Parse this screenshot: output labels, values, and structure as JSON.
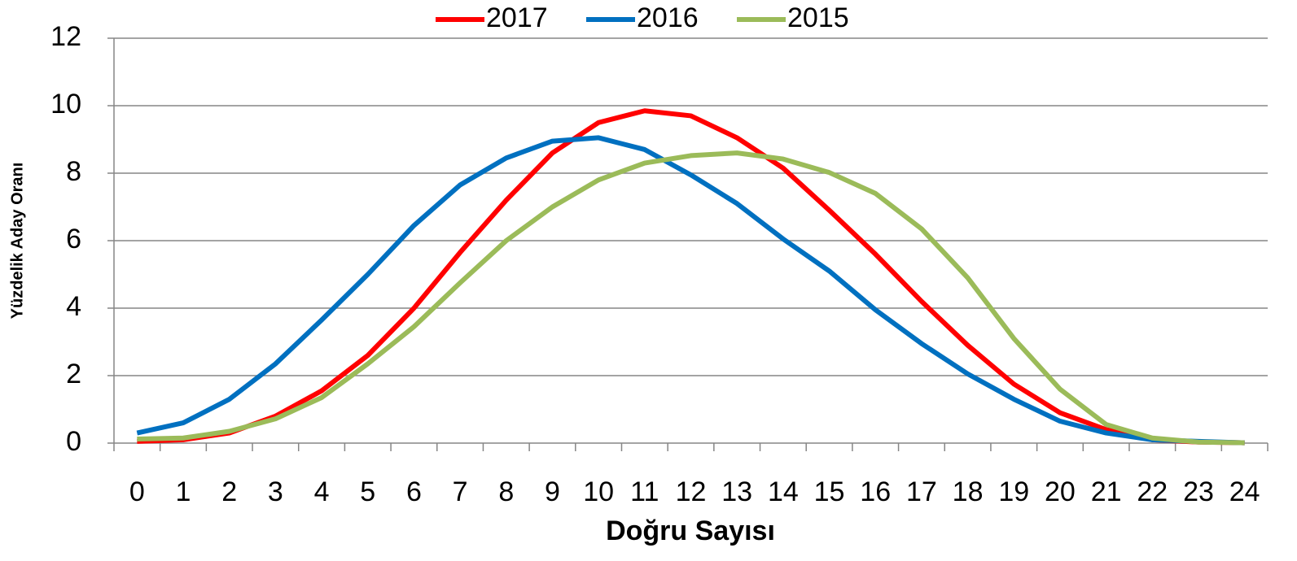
{
  "chart_data": {
    "type": "line",
    "x_label": "Doğru Sayısı",
    "y_label": "Yüzdelik Aday Oranı",
    "categories": [
      "0",
      "1",
      "2",
      "3",
      "4",
      "5",
      "6",
      "7",
      "8",
      "9",
      "10",
      "11",
      "12",
      "13",
      "14",
      "15",
      "16",
      "17",
      "18",
      "19",
      "20",
      "21",
      "22",
      "23",
      "24"
    ],
    "series": [
      {
        "name": "2017",
        "color": "#ff0000",
        "values": [
          0.05,
          0.1,
          0.3,
          0.8,
          1.55,
          2.6,
          4.0,
          5.65,
          7.2,
          8.6,
          9.5,
          9.85,
          9.7,
          9.05,
          8.15,
          6.9,
          5.6,
          4.2,
          2.9,
          1.75,
          0.9,
          0.4,
          0.1,
          0.03,
          0.01
        ]
      },
      {
        "name": "2016",
        "color": "#0070c0",
        "values": [
          0.3,
          0.6,
          1.3,
          2.35,
          3.65,
          5.0,
          6.45,
          7.65,
          8.45,
          8.95,
          9.05,
          8.7,
          7.95,
          7.1,
          6.05,
          5.1,
          3.95,
          2.95,
          2.05,
          1.3,
          0.65,
          0.3,
          0.1,
          0.05,
          0.01
        ]
      },
      {
        "name": "2015",
        "color": "#9bbb59",
        "values": [
          0.12,
          0.15,
          0.35,
          0.72,
          1.35,
          2.35,
          3.45,
          4.75,
          6.0,
          7.0,
          7.8,
          8.3,
          8.52,
          8.6,
          8.42,
          8.02,
          7.4,
          6.35,
          4.9,
          3.1,
          1.6,
          0.55,
          0.15,
          0.03,
          0.01
        ]
      }
    ],
    "ylim": [
      0,
      12
    ],
    "yticks": [
      0,
      2,
      4,
      6,
      8,
      10,
      12
    ],
    "grid": true,
    "legend": "top"
  }
}
